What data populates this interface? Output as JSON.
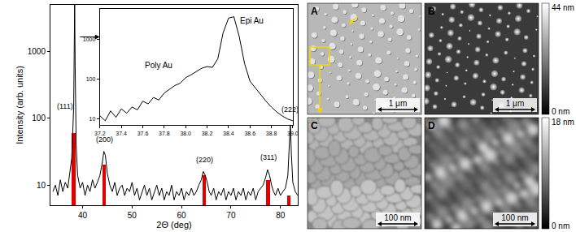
{
  "chart_data": [
    {
      "type": "line",
      "x_label": "2Θ (deg)",
      "y_label": "Intensity (arb. units)",
      "log": "y",
      "grid": false,
      "xlim": [
        33.5,
        83.5
      ],
      "ylim": [
        5,
        5000
      ],
      "xticks": [
        40,
        50,
        60,
        70,
        80
      ],
      "yticks": [
        10,
        100,
        1000
      ],
      "series": [
        {
          "type": "line",
          "color": "#000000",
          "x": [
            34,
            34.5,
            35,
            35.5,
            36,
            36.5,
            37,
            37.4,
            37.8,
            38.0,
            38.2,
            38.3,
            38.4,
            38.5,
            38.7,
            39,
            39.5,
            40,
            40.5,
            41,
            41.5,
            42,
            42.5,
            43,
            43.5,
            44,
            44.3,
            44.6,
            45,
            45.5,
            46,
            46.5,
            47,
            47.5,
            48,
            48.5,
            49,
            49.5,
            50,
            50.5,
            51,
            51.5,
            52,
            52.5,
            53,
            53.5,
            54,
            54.5,
            55,
            55.5,
            56,
            56.5,
            57,
            57.5,
            58,
            58.5,
            59,
            59.5,
            60,
            60.5,
            61,
            61.5,
            62,
            62.5,
            63,
            63.5,
            64,
            64.4,
            64.8,
            65.2,
            65.6,
            66,
            66.5,
            67,
            67.5,
            68,
            68.5,
            69,
            69.5,
            70,
            70.5,
            71,
            71.5,
            72,
            72.5,
            73,
            73.5,
            74,
            74.5,
            75,
            75.5,
            76,
            76.5,
            77,
            77.4,
            77.8,
            78.2,
            78.6,
            79,
            79.5,
            80,
            80.5,
            81,
            81.5,
            81.8,
            82.0,
            82.2,
            82.5,
            83,
            83.5
          ],
          "values": [
            8,
            10,
            7,
            12,
            8,
            11,
            9,
            14,
            25,
            60,
            150,
            900,
            5000,
            600,
            40,
            14,
            9,
            11,
            7,
            10,
            8,
            12,
            9,
            11,
            14,
            22,
            32,
            28,
            15,
            10,
            8,
            11,
            7,
            9,
            10,
            7,
            9,
            8,
            11,
            7,
            9,
            6,
            8,
            10,
            7,
            9,
            6,
            8,
            10,
            7,
            9,
            6,
            8,
            7,
            10,
            6,
            8,
            7,
            9,
            6,
            8,
            7,
            9,
            7,
            8,
            10,
            12,
            16,
            14,
            11,
            8,
            7,
            9,
            6,
            8,
            7,
            9,
            6,
            8,
            7,
            9,
            6,
            8,
            7,
            9,
            6,
            8,
            7,
            9,
            6,
            8,
            9,
            10,
            13,
            17,
            14,
            10,
            8,
            7,
            9,
            7,
            8,
            9,
            14,
            40,
            85,
            30,
            11,
            8,
            7
          ]
        },
        {
          "type": "bar",
          "color": "#e00000",
          "x": [
            38.2,
            44.4,
            64.6,
            77.5,
            81.7
          ],
          "values": [
            60,
            20,
            14,
            12,
            7
          ]
        }
      ],
      "annotations": [
        {
          "text": "(111)",
          "x": 36.4,
          "y": 150
        },
        {
          "text": "(200)",
          "x": 44.4,
          "y": 48
        },
        {
          "text": "(220)",
          "x": 64.6,
          "y": 24
        },
        {
          "text": "(311)",
          "x": 77.5,
          "y": 26
        },
        {
          "text": "(222)",
          "x": 82.0,
          "y": 135
        }
      ]
    },
    {
      "type": "line",
      "log": "y",
      "grid": false,
      "xlim": [
        37.2,
        39.0
      ],
      "ylim": [
        7,
        6000
      ],
      "xticks": [
        37.2,
        37.4,
        37.6,
        37.8,
        {
          "value": 38.0,
          "label": "38.0"
        },
        38.2,
        38.4,
        38.6,
        38.8,
        {
          "value": 39.0,
          "label": "39.0"
        }
      ],
      "yticks": [
        10,
        100,
        1000
      ],
      "series": [
        {
          "type": "line",
          "color": "#000000",
          "x": [
            37.2,
            37.25,
            37.3,
            37.35,
            37.4,
            37.45,
            37.5,
            37.55,
            37.6,
            37.65,
            37.7,
            37.75,
            37.8,
            37.85,
            37.9,
            37.95,
            38.0,
            38.05,
            38.1,
            38.15,
            38.2,
            38.25,
            38.3,
            38.35,
            38.4,
            38.45,
            38.5,
            38.55,
            38.6,
            38.65,
            38.7,
            38.75,
            38.8,
            38.85,
            38.9,
            38.95,
            39.0
          ],
          "values": [
            12,
            9,
            16,
            11,
            18,
            14,
            20,
            17,
            28,
            24,
            35,
            30,
            45,
            55,
            70,
            80,
            110,
            130,
            160,
            190,
            210,
            200,
            330,
            1500,
            3500,
            3800,
            1200,
            250,
            90,
            60,
            40,
            28,
            20,
            15,
            12,
            10,
            9
          ]
        }
      ],
      "annotations": [
        {
          "text": "Poly Au",
          "x": 37.75,
          "y": 230
        },
        {
          "text": "Epi Au",
          "x": 38.62,
          "y": 3000
        }
      ]
    }
  ],
  "panels": [
    {
      "label": "A",
      "scale_bar": "1 μm"
    },
    {
      "label": "B",
      "scale_bar": "1 μm"
    },
    {
      "label": "C",
      "scale_bar": "100 nm"
    },
    {
      "label": "D",
      "scale_bar": "100 nm"
    }
  ],
  "colorbars": [
    {
      "max_label": "44 nm",
      "min_label": "0 nm"
    },
    {
      "max_label": "18 nm",
      "min_label": "0 nm"
    }
  ]
}
